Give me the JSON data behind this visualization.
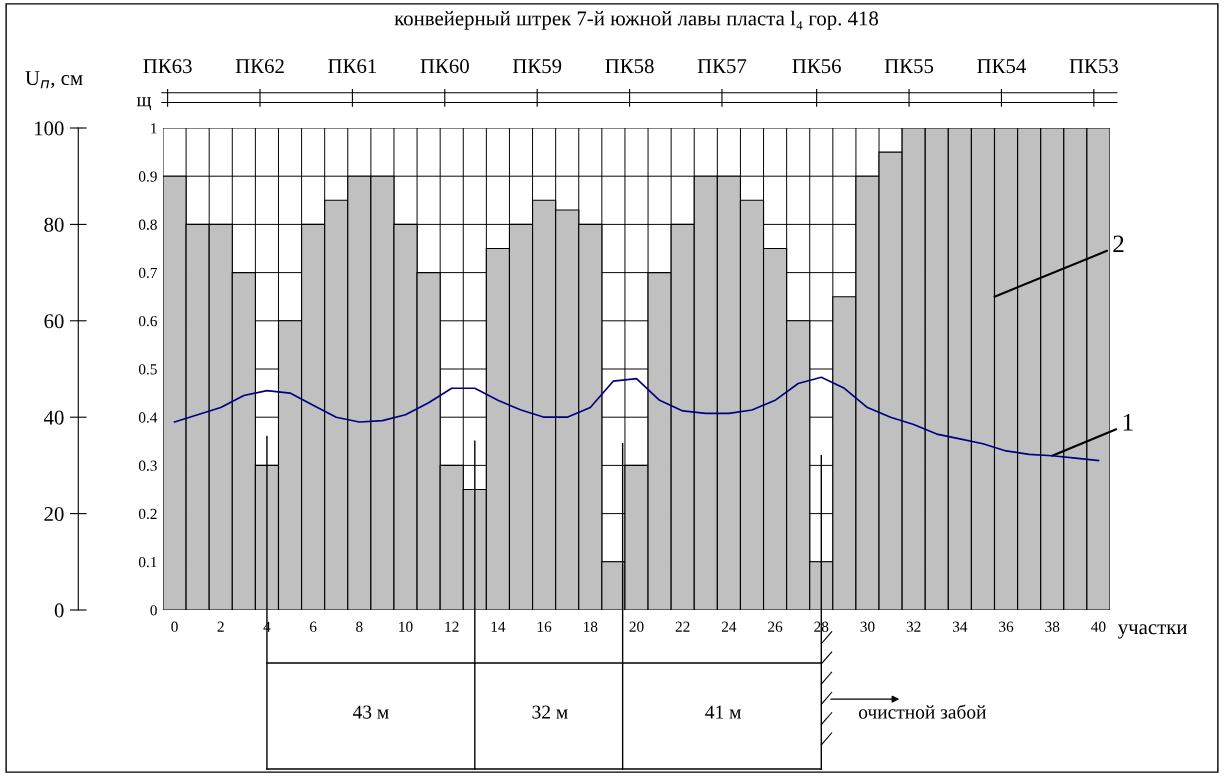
{
  "chart_data": {
    "type": "bar",
    "title": "конвейерный штрек 7-й южной лавы пласта l₄ гор. 418",
    "xlabel": "участки",
    "ylabel": "U$_{п}$, см",
    "x": [
      0,
      1,
      2,
      3,
      4,
      5,
      6,
      7,
      8,
      9,
      10,
      11,
      12,
      13,
      14,
      15,
      16,
      17,
      18,
      19,
      20,
      21,
      22,
      23,
      24,
      25,
      26,
      27,
      28,
      29,
      30,
      31,
      32,
      33,
      34,
      35,
      36,
      37,
      38,
      39,
      40
    ],
    "series": [
      {
        "axis": "y2",
        "color": "#c0c0c0",
        "values": [
          0.9,
          0.8,
          0.8,
          0.7,
          0.3,
          0.6,
          0.8,
          0.85,
          0.9,
          0.9,
          0.8,
          0.7,
          0.3,
          0.25,
          0.75,
          0.8,
          0.85,
          0.83,
          0.8,
          0.1,
          0.3,
          0.7,
          0.8,
          0.9,
          0.9,
          0.85,
          0.75,
          0.6,
          0.1,
          0.65,
          0.9,
          0.95,
          1,
          1,
          1,
          1,
          1,
          1,
          1,
          1,
          1
        ]
      },
      {
        "type": "line",
        "axis": "y",
        "color": "#000080",
        "values": [
          39,
          40.5,
          42,
          44.5,
          45.5,
          45,
          42.5,
          40,
          39,
          39.3,
          40.5,
          43,
          46,
          46,
          43.5,
          41.5,
          40,
          40,
          42,
          47.5,
          48,
          43.5,
          41.3,
          40.8,
          40.8,
          41.5,
          43.5,
          47,
          48.3,
          46,
          42,
          40,
          38.5,
          36.5,
          35.5,
          34.5,
          33,
          32.3,
          32,
          31.5,
          31
        ]
      }
    ],
    "xlim": [
      -0.5,
      40.5
    ],
    "xticks": [
      0,
      2,
      4,
      6,
      8,
      10,
      12,
      14,
      16,
      18,
      20,
      22,
      24,
      26,
      28,
      30,
      32,
      34,
      36,
      38,
      40
    ],
    "ylim": [
      0,
      100
    ],
    "yticks": [
      0,
      20,
      40,
      60,
      80,
      100
    ],
    "y2lim": [
      0,
      1
    ],
    "y2ticks": [
      0,
      0.1,
      0.2,
      0.3,
      0.4,
      0.5,
      0.6,
      0.7,
      0.8,
      0.9,
      1
    ],
    "grid": true,
    "ref_lines": [
      {
        "axis": "x",
        "value": 4,
        "label": null
      },
      {
        "axis": "x",
        "value": 13,
        "label": null
      },
      {
        "axis": "x",
        "value": 19.4,
        "label": null
      },
      {
        "axis": "x",
        "value": 28,
        "label": null
      }
    ],
    "annotations": [
      "ПК63",
      "ПК62",
      "ПК61",
      "ПК60",
      "ПК59",
      "ПК58",
      "ПК57",
      "ПК56",
      "ПК55",
      "ПК54",
      "ПК53",
      "щ",
      "43 м",
      "32 м",
      "41 м",
      "очистной забой",
      {
        "text": "1",
        "x": 38,
        "y": 32
      },
      {
        "text": "2",
        "x": 35.5,
        "y": 65
      }
    ]
  }
}
